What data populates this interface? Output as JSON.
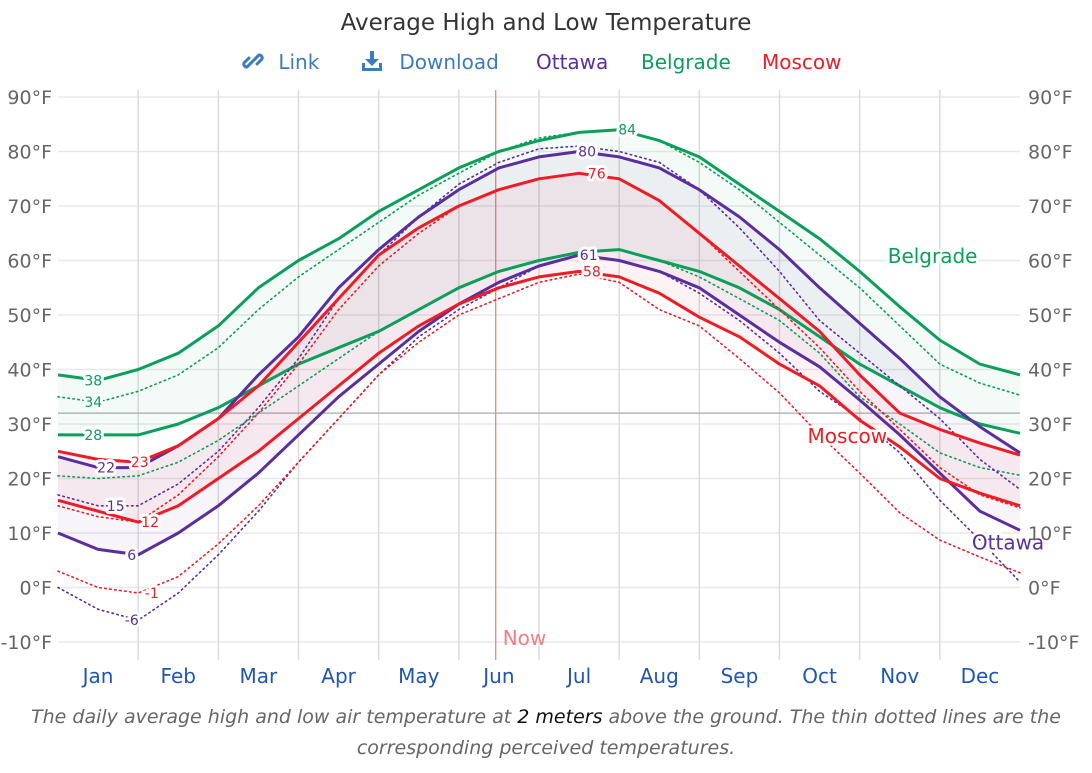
{
  "header": {
    "title": "Average High and Low Temperature",
    "link_label": "Link",
    "link_icon": "link-icon",
    "download_label": "Download",
    "download_icon": "download-icon",
    "legend": [
      "Ottawa",
      "Belgrade",
      "Moscow"
    ]
  },
  "caption": {
    "before": "The daily average high and low air temperature at ",
    "emphasis": "2 meters",
    "after": " above the ground. The thin dotted lines are the corresponding perceived temperatures."
  },
  "chart_data": {
    "type": "line",
    "title": "Average High and Low Temperature",
    "x_unit": "month of year (0 = Jan 1, 12 = Dec 31)",
    "x": [
      0,
      0.5,
      1,
      1.5,
      2,
      2.5,
      3,
      3.5,
      4,
      4.5,
      5,
      5.5,
      6,
      6.5,
      7,
      7.5,
      8,
      8.5,
      9,
      9.5,
      10,
      10.5,
      11,
      11.5,
      12
    ],
    "xticks": [
      "Jan",
      "Feb",
      "Mar",
      "Apr",
      "May",
      "Jun",
      "Jul",
      "Aug",
      "Sep",
      "Oct",
      "Nov",
      "Dec"
    ],
    "ylim": [
      -10,
      90
    ],
    "yticks": [
      "-10°F",
      "0°F",
      "10°F",
      "20°F",
      "30°F",
      "40°F",
      "50°F",
      "60°F",
      "70°F",
      "80°F",
      "90°F"
    ],
    "ytick_values": [
      -10,
      0,
      10,
      20,
      30,
      40,
      50,
      60,
      70,
      80,
      90
    ],
    "grid": true,
    "freezing_line": 32,
    "now_marker": {
      "label": "Now",
      "month": 5.46,
      "color": "#f08080"
    },
    "colors": {
      "Ottawa": "#5b2e9e",
      "Belgrade": "#0a9f5a",
      "Moscow": "#ee1c25"
    },
    "series": [
      {
        "name": "Belgrade",
        "high": [
          39,
          38,
          40,
          43,
          48,
          55,
          60,
          64,
          69,
          73,
          77,
          80,
          82,
          83.5,
          84,
          82,
          79,
          74,
          69,
          64,
          58,
          51.5,
          45.4,
          41,
          39
        ],
        "low": [
          28,
          28,
          28,
          30,
          33,
          37,
          41,
          44,
          47,
          51,
          55,
          58,
          60,
          61.5,
          62,
          60,
          58,
          55,
          51,
          46,
          41,
          37,
          33,
          30,
          28.3
        ],
        "high_perceived": [
          35,
          34,
          36,
          39,
          44,
          51,
          57,
          62,
          67,
          72,
          76,
          80,
          82.5,
          83.5,
          84,
          82,
          78,
          73,
          67,
          61,
          55,
          48,
          41,
          37.5,
          35.3
        ],
        "low_perceived": [
          20.5,
          20,
          20.5,
          23,
          27,
          32,
          37,
          42,
          47,
          51,
          55,
          58,
          60,
          61.5,
          62,
          60,
          57,
          53,
          49,
          43,
          35,
          30,
          24.7,
          22,
          20.6
        ]
      },
      {
        "name": "Ottawa",
        "high": [
          24,
          22,
          22,
          26,
          31,
          39,
          46,
          55,
          62,
          68,
          73,
          77,
          79,
          80,
          79,
          77,
          73,
          68,
          62,
          55,
          48.5,
          42,
          35,
          29.5,
          24.7
        ],
        "low": [
          10,
          7,
          6,
          10,
          15,
          21,
          28,
          35,
          41,
          47,
          52,
          56,
          59,
          61,
          60,
          58,
          55,
          50,
          45,
          40.5,
          34.4,
          28,
          21,
          14,
          10.5
        ],
        "high_perceived": [
          17,
          15,
          15,
          19,
          25,
          33,
          42,
          53,
          61,
          68,
          74,
          78,
          80.5,
          81,
          80,
          78,
          73,
          66,
          58,
          49,
          43,
          37,
          31,
          23.5,
          18
        ],
        "low_perceived": [
          0,
          -4,
          -6,
          -1,
          6,
          14,
          23,
          31,
          39,
          46,
          51,
          55,
          59,
          61,
          60,
          58,
          54,
          49,
          43,
          36,
          31,
          24.7,
          16,
          8.7,
          1
        ]
      },
      {
        "name": "Moscow",
        "high": [
          25,
          23.5,
          23,
          26,
          31,
          37,
          45,
          53,
          61,
          66,
          70,
          73,
          75,
          76,
          75,
          71,
          65,
          59,
          53,
          47,
          39,
          32,
          29,
          26.5,
          24.3
        ],
        "low": [
          16,
          14,
          12,
          15,
          20,
          25,
          31,
          37,
          43,
          48,
          52,
          55,
          57,
          58,
          57,
          54,
          49.6,
          46,
          41,
          37,
          30.7,
          25.8,
          20,
          17.3,
          15
        ],
        "high_perceived": [
          15,
          13,
          12,
          17,
          24,
          32,
          41,
          51,
          59,
          65,
          70,
          73,
          75,
          76,
          75,
          71,
          65,
          58,
          51,
          44,
          36,
          29,
          22,
          17,
          14.6
        ],
        "low_perceived": [
          3,
          0,
          -1,
          2,
          8,
          15,
          23,
          31,
          39,
          45,
          50,
          53,
          56,
          57.5,
          56,
          51,
          48,
          42,
          35.7,
          28,
          21,
          13.7,
          8.7,
          5.6,
          2.7
        ]
      }
    ],
    "annotations": [
      {
        "series": "Belgrade",
        "line": "high",
        "month": 0.44,
        "value": 38
      },
      {
        "series": "Belgrade",
        "line": "high_perceived",
        "month": 0.44,
        "value": 34
      },
      {
        "series": "Belgrade",
        "line": "low",
        "month": 0.44,
        "value": 28
      },
      {
        "series": "Ottawa",
        "line": "high",
        "month": 0.6,
        "value": 22
      },
      {
        "series": "Moscow",
        "line": "high",
        "month": 1.02,
        "value": 23
      },
      {
        "series": "Ottawa",
        "line": "high_perceived",
        "month": 0.72,
        "value": 15
      },
      {
        "series": "Moscow",
        "line": "low",
        "month": 1.15,
        "value": 12
      },
      {
        "series": "Ottawa",
        "line": "low",
        "month": 0.92,
        "value": 6
      },
      {
        "series": "Moscow",
        "line": "low_perceived",
        "month": 1.17,
        "value": -1
      },
      {
        "series": "Ottawa",
        "line": "low_perceived",
        "month": 0.92,
        "value": -6
      },
      {
        "series": "Belgrade",
        "line": "high",
        "month": 7.1,
        "value": 84
      },
      {
        "series": "Ottawa",
        "line": "high",
        "month": 6.6,
        "value": 80
      },
      {
        "series": "Moscow",
        "line": "high",
        "month": 6.72,
        "value": 76
      },
      {
        "series": "Ottawa",
        "line": "low",
        "month": 6.62,
        "value": 61
      },
      {
        "series": "Moscow",
        "line": "low",
        "month": 6.66,
        "value": 58
      }
    ],
    "series_labels": [
      {
        "name": "Belgrade",
        "month": 10.35,
        "value": 59.5
      },
      {
        "name": "Moscow",
        "month": 9.35,
        "value": 26.5
      },
      {
        "name": "Ottawa",
        "month": 11.4,
        "value": 7
      }
    ]
  }
}
